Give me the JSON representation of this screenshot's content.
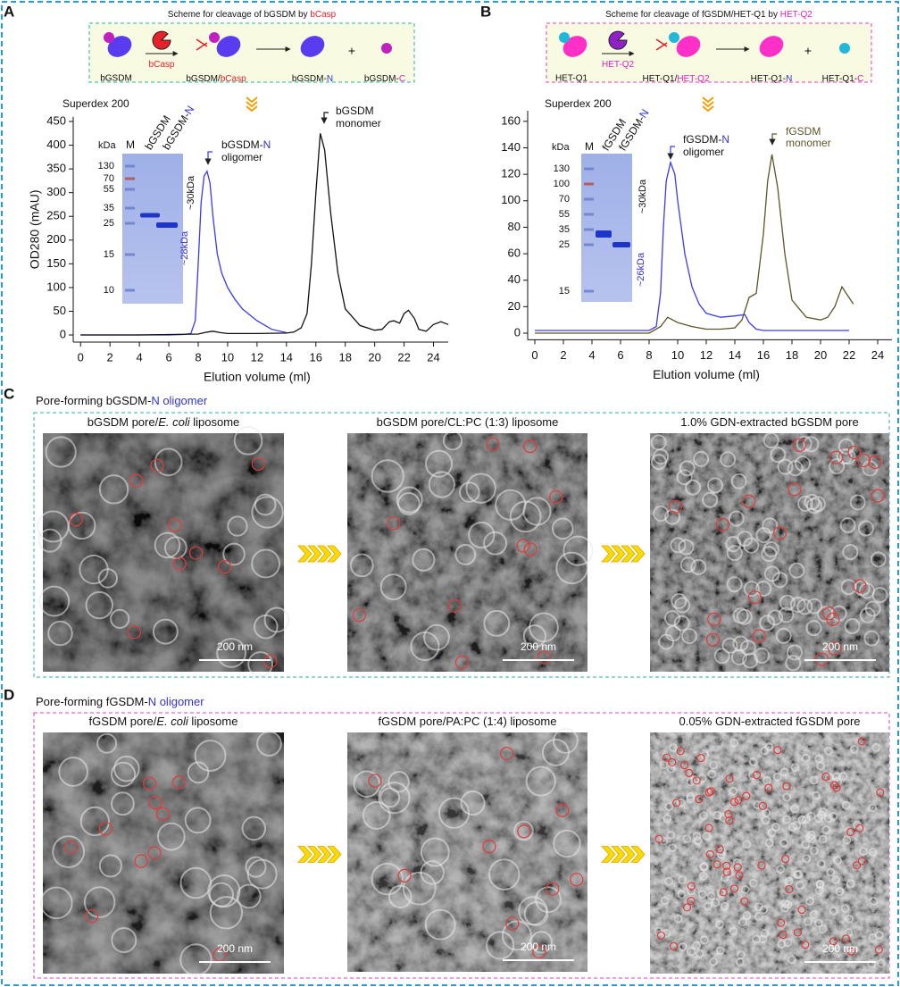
{
  "chart_data": [
    {
      "type": "line",
      "label": "A",
      "xlabel": "Elution volume (ml)",
      "ylabel": "OD280 (mAU)",
      "xlim": [
        -0.5,
        25
      ],
      "xticks": [
        0,
        2,
        4,
        6,
        8,
        10,
        12,
        14,
        16,
        18,
        20,
        22,
        24
      ],
      "ylim": [
        -15,
        460
      ],
      "yticks": [
        0,
        50,
        100,
        150,
        200,
        250,
        300,
        350,
        400,
        450
      ],
      "annotations": [
        "Superdex 200",
        [
          {
            "t": "bGSDM-"
          },
          {
            "t": "N",
            "c": "#3333cc"
          }
        ],
        "oligomer",
        "bGSDM",
        "monomer"
      ],
      "gel": {
        "unit": "kDa",
        "lanes": [
          "M",
          "bGSDM",
          [
            {
              "t": "bGSDM-"
            },
            {
              "t": "N",
              "c": "#3333cc"
            }
          ]
        ],
        "markers": [
          130,
          70,
          55,
          35,
          25,
          15,
          10
        ],
        "band_labels": [
          [
            {
              "t": "~30kDa"
            }
          ],
          [
            {
              "t": "~28kDa",
              "c": "#3333cc"
            }
          ]
        ]
      },
      "series": [
        {
          "color": "#3a3af0",
          "x": [
            0,
            2,
            4,
            6,
            7,
            7.5,
            7.8,
            8,
            8.2,
            8.4,
            8.6,
            8.8,
            9,
            9.3,
            9.6,
            10,
            10.5,
            11,
            12,
            13,
            14
          ],
          "values": [
            0,
            0,
            0,
            0,
            1,
            3,
            30,
            150,
            280,
            335,
            345,
            320,
            250,
            170,
            130,
            100,
            75,
            55,
            30,
            12,
            5
          ]
        },
        {
          "color": "#111111",
          "x": [
            0,
            4,
            8,
            8.6,
            9,
            9.5,
            10,
            12,
            14,
            14.5,
            15,
            15.4,
            15.7,
            16,
            16.3,
            16.6,
            17,
            17.5,
            18,
            19,
            20,
            20.5,
            21,
            21.3,
            21.7,
            22,
            22.3,
            22.7,
            23,
            23.5,
            24,
            24.5,
            25
          ],
          "values": [
            0,
            0,
            2,
            6,
            8,
            5,
            3,
            3,
            4,
            6,
            15,
            45,
            150,
            300,
            425,
            390,
            260,
            130,
            55,
            20,
            10,
            12,
            28,
            30,
            25,
            45,
            52,
            35,
            12,
            8,
            22,
            28,
            22
          ]
        }
      ]
    },
    {
      "type": "line",
      "label": "B",
      "xlabel": "Elution volume (ml)",
      "xlim": [
        -0.5,
        25
      ],
      "xticks": [
        0,
        2,
        4,
        6,
        8,
        10,
        12,
        14,
        16,
        18,
        20,
        22,
        24
      ],
      "ylim": [
        -5,
        168
      ],
      "yticks": [
        0,
        20,
        40,
        60,
        80,
        100,
        120,
        140,
        160
      ],
      "annotations": [
        "Superdex 200",
        [
          {
            "t": "fGSDM-"
          },
          {
            "t": "N",
            "c": "#3333cc"
          }
        ],
        "oligomer",
        [
          {
            "t": "fGSDM",
            "c": "#5b5528"
          }
        ],
        [
          {
            "t": "monomer",
            "c": "#5b5528"
          }
        ]
      ],
      "gel": {
        "unit": "kDa",
        "lanes": [
          "M",
          "fGSDM",
          [
            {
              "t": "fGSDM-"
            },
            {
              "t": "N",
              "c": "#3333cc"
            }
          ]
        ],
        "markers": [
          130,
          100,
          70,
          55,
          35,
          25,
          15
        ],
        "band_labels": [
          [
            {
              "t": "~30kDa"
            }
          ],
          [
            {
              "t": "~26kDa",
              "c": "#3333cc"
            }
          ]
        ]
      },
      "series": [
        {
          "color": "#3a3af0",
          "x": [
            0,
            4,
            8,
            8.5,
            8.8,
            9,
            9.2,
            9.5,
            9.8,
            10,
            10.5,
            11,
            11.5,
            12,
            13,
            14,
            14.7,
            15,
            15.5,
            16,
            18,
            20,
            22
          ],
          "values": [
            2,
            2,
            2,
            5,
            30,
            80,
            115,
            129,
            120,
            100,
            60,
            35,
            22,
            15,
            12,
            13,
            14,
            8,
            3,
            2,
            2,
            2,
            2
          ]
        },
        {
          "color": "#5b5528",
          "x": [
            0,
            8,
            8.8,
            9.3,
            10,
            11,
            12,
            13,
            14,
            14.5,
            15,
            15.5,
            16,
            16.3,
            16.6,
            17,
            17.5,
            18,
            19,
            20,
            20.5,
            21,
            21.5,
            21.8,
            22.3
          ],
          "values": [
            0,
            0,
            5,
            12,
            8,
            5,
            3,
            3,
            4,
            10,
            27,
            30,
            75,
            115,
            135,
            110,
            60,
            25,
            12,
            10,
            12,
            20,
            35,
            30,
            22
          ]
        }
      ]
    }
  ],
  "schemes": [
    {
      "title": [
        {
          "t": "Scheme for cleavage of bGSDM by "
        },
        {
          "t": "bCasp",
          "c": "#e8202a"
        }
      ],
      "labels": [
        "bGSDM",
        [
          {
            "t": "bCasp",
            "c": "#e8202a"
          }
        ],
        [
          {
            "t": "bGSDM/"
          },
          {
            "t": "bCasp",
            "c": "#e8202a"
          }
        ],
        [
          {
            "t": "bGSDM-"
          },
          {
            "t": "N",
            "c": "#3333cc"
          }
        ],
        "+",
        [
          {
            "t": "bGSDM-"
          },
          {
            "t": "C",
            "c": "#e020c0"
          }
        ]
      ]
    },
    {
      "title": [
        {
          "t": "Scheme for cleavage of fGSDM/HET-Q1 by "
        },
        {
          "t": "HET-Q2",
          "c": "#e020c0"
        }
      ],
      "labels": [
        "HET-Q1",
        [
          {
            "t": "HET-Q2",
            "c": "#e020c0"
          }
        ],
        [
          {
            "t": "HET-Q1/"
          },
          {
            "t": "HET-Q2",
            "c": "#e020c0"
          }
        ],
        [
          {
            "t": "HET-Q1-"
          },
          {
            "t": "N",
            "c": "#3333cc"
          }
        ],
        "+",
        [
          {
            "t": "HET-Q1-"
          },
          {
            "t": "C",
            "c": "#e020c0"
          }
        ]
      ]
    }
  ],
  "panels": [
    {
      "label": "C",
      "title": [
        {
          "t": "Pore-forming bGSDM-"
        },
        {
          "t": "N oligomer",
          "c": "#3333cc"
        }
      ],
      "images": [
        {
          "caption": [
            {
              "t": "bGSDM pore/"
            },
            {
              "t": "E. coli",
              "i": true
            },
            {
              "t": " liposome"
            }
          ],
          "scale": "200 nm"
        },
        {
          "caption": [
            {
              "t": "bGSDM pore/CL:PC (1:3) liposome"
            }
          ],
          "scale": "200 nm"
        },
        {
          "caption": [
            {
              "t": "1.0% GDN-extracted bGSDM pore"
            }
          ],
          "scale": "200 nm"
        }
      ]
    },
    {
      "label": "D",
      "title": [
        {
          "t": "Pore-forming fGSDM-"
        },
        {
          "t": "N oligomer",
          "c": "#3333cc"
        }
      ],
      "images": [
        {
          "caption": [
            {
              "t": "fGSDM pore/"
            },
            {
              "t": "E. coli",
              "i": true
            },
            {
              "t": " liposome"
            }
          ],
          "scale": "200 nm"
        },
        {
          "caption": [
            {
              "t": "fGSDM pore/PA:PC (1:4) liposome"
            }
          ],
          "scale": "200 nm"
        },
        {
          "caption": [
            {
              "t": "0.05% GDN-extracted fGSDM pore"
            }
          ],
          "scale": "200 nm"
        }
      ]
    }
  ]
}
